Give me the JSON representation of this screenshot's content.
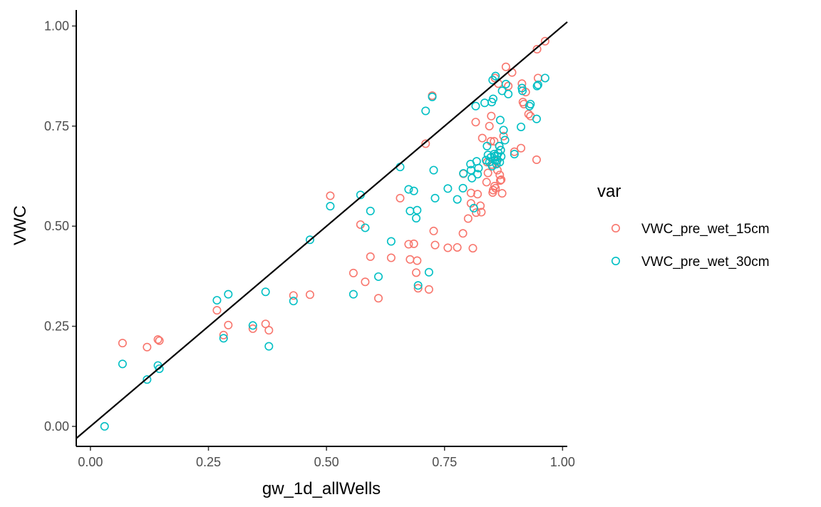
{
  "chart_data": {
    "type": "scatter",
    "xlabel": "gw_1d_allWells",
    "ylabel": "VWC",
    "xlim": [
      -0.03,
      1.01
    ],
    "ylim": [
      -0.05,
      1.04
    ],
    "x_ticks": [
      "0.00",
      "0.25",
      "0.50",
      "0.75",
      "1.00"
    ],
    "y_ticks": [
      "0.00",
      "0.25",
      "0.50",
      "0.75",
      "1.00"
    ],
    "grid": false,
    "legend": {
      "title": "var",
      "position": "right"
    },
    "reference_line": {
      "type": "1:1",
      "color": "#000000"
    },
    "series": [
      {
        "name": "VWC_pre_wet_15cm",
        "color": "#F8766D",
        "points": [
          [
            0.068,
            0.208
          ],
          [
            0.12,
            0.198
          ],
          [
            0.143,
            0.217
          ],
          [
            0.146,
            0.214
          ],
          [
            0.268,
            0.29
          ],
          [
            0.282,
            0.228
          ],
          [
            0.292,
            0.253
          ],
          [
            0.344,
            0.244
          ],
          [
            0.371,
            0.256
          ],
          [
            0.378,
            0.24
          ],
          [
            0.43,
            0.327
          ],
          [
            0.465,
            0.329
          ],
          [
            0.508,
            0.576
          ],
          [
            0.557,
            0.383
          ],
          [
            0.572,
            0.504
          ],
          [
            0.582,
            0.361
          ],
          [
            0.593,
            0.424
          ],
          [
            0.61,
            0.32
          ],
          [
            0.637,
            0.421
          ],
          [
            0.656,
            0.57
          ],
          [
            0.674,
            0.455
          ],
          [
            0.677,
            0.417
          ],
          [
            0.685,
            0.456
          ],
          [
            0.69,
            0.384
          ],
          [
            0.692,
            0.414
          ],
          [
            0.694,
            0.345
          ],
          [
            0.71,
            0.706
          ],
          [
            0.717,
            0.342
          ],
          [
            0.724,
            0.826
          ],
          [
            0.727,
            0.488
          ],
          [
            0.73,
            0.453
          ],
          [
            0.757,
            0.446
          ],
          [
            0.777,
            0.447
          ],
          [
            0.789,
            0.482
          ],
          [
            0.79,
            0.631
          ],
          [
            0.8,
            0.519
          ],
          [
            0.806,
            0.557
          ],
          [
            0.806,
            0.583
          ],
          [
            0.81,
            0.445
          ],
          [
            0.816,
            0.76
          ],
          [
            0.817,
            0.534
          ],
          [
            0.82,
            0.58
          ],
          [
            0.826,
            0.551
          ],
          [
            0.828,
            0.535
          ],
          [
            0.83,
            0.72
          ],
          [
            0.839,
            0.61
          ],
          [
            0.84,
            0.66
          ],
          [
            0.842,
            0.633
          ],
          [
            0.845,
            0.75
          ],
          [
            0.848,
            0.712
          ],
          [
            0.849,
            0.775
          ],
          [
            0.85,
            0.654
          ],
          [
            0.852,
            0.584
          ],
          [
            0.853,
            0.59
          ],
          [
            0.855,
            0.712
          ],
          [
            0.856,
            0.6
          ],
          [
            0.857,
            0.87
          ],
          [
            0.858,
            0.595
          ],
          [
            0.86,
            0.662
          ],
          [
            0.862,
            0.64
          ],
          [
            0.864,
            0.856
          ],
          [
            0.866,
            0.7
          ],
          [
            0.867,
            0.628
          ],
          [
            0.868,
            0.614
          ],
          [
            0.869,
            0.69
          ],
          [
            0.87,
            0.616
          ],
          [
            0.872,
            0.582
          ],
          [
            0.875,
            0.725
          ],
          [
            0.88,
            0.898
          ],
          [
            0.885,
            0.85
          ],
          [
            0.893,
            0.884
          ],
          [
            0.898,
            0.686
          ],
          [
            0.912,
            0.695
          ],
          [
            0.914,
            0.856
          ],
          [
            0.916,
            0.81
          ],
          [
            0.918,
            0.805
          ],
          [
            0.922,
            0.835
          ],
          [
            0.928,
            0.78
          ],
          [
            0.932,
            0.775
          ],
          [
            0.945,
            0.666
          ],
          [
            0.946,
            0.942
          ],
          [
            0.948,
            0.87
          ],
          [
            0.963,
            0.962
          ]
        ]
      },
      {
        "name": "VWC_pre_wet_30cm",
        "color": "#00BFC4",
        "points": [
          [
            0.03,
            0.0
          ],
          [
            0.068,
            0.156
          ],
          [
            0.12,
            0.117
          ],
          [
            0.143,
            0.152
          ],
          [
            0.146,
            0.144
          ],
          [
            0.268,
            0.315
          ],
          [
            0.282,
            0.22
          ],
          [
            0.292,
            0.33
          ],
          [
            0.344,
            0.252
          ],
          [
            0.371,
            0.336
          ],
          [
            0.378,
            0.2
          ],
          [
            0.43,
            0.313
          ],
          [
            0.465,
            0.466
          ],
          [
            0.508,
            0.55
          ],
          [
            0.557,
            0.33
          ],
          [
            0.572,
            0.578
          ],
          [
            0.582,
            0.496
          ],
          [
            0.593,
            0.538
          ],
          [
            0.61,
            0.374
          ],
          [
            0.637,
            0.462
          ],
          [
            0.656,
            0.648
          ],
          [
            0.674,
            0.592
          ],
          [
            0.677,
            0.538
          ],
          [
            0.685,
            0.588
          ],
          [
            0.69,
            0.52
          ],
          [
            0.692,
            0.54
          ],
          [
            0.694,
            0.352
          ],
          [
            0.71,
            0.788
          ],
          [
            0.717,
            0.385
          ],
          [
            0.724,
            0.823
          ],
          [
            0.727,
            0.64
          ],
          [
            0.73,
            0.57
          ],
          [
            0.757,
            0.594
          ],
          [
            0.777,
            0.567
          ],
          [
            0.789,
            0.595
          ],
          [
            0.79,
            0.632
          ],
          [
            0.805,
            0.655
          ],
          [
            0.806,
            0.64
          ],
          [
            0.808,
            0.62
          ],
          [
            0.812,
            0.545
          ],
          [
            0.816,
            0.8
          ],
          [
            0.818,
            0.662
          ],
          [
            0.82,
            0.63
          ],
          [
            0.822,
            0.645
          ],
          [
            0.835,
            0.808
          ],
          [
            0.838,
            0.665
          ],
          [
            0.84,
            0.7
          ],
          [
            0.842,
            0.678
          ],
          [
            0.845,
            0.66
          ],
          [
            0.848,
            0.672
          ],
          [
            0.85,
            0.81
          ],
          [
            0.851,
            0.65
          ],
          [
            0.852,
            0.865
          ],
          [
            0.853,
            0.818
          ],
          [
            0.855,
            0.68
          ],
          [
            0.856,
            0.675
          ],
          [
            0.857,
            0.665
          ],
          [
            0.858,
            0.875
          ],
          [
            0.86,
            0.655
          ],
          [
            0.861,
            0.675
          ],
          [
            0.862,
            0.665
          ],
          [
            0.864,
            0.683
          ],
          [
            0.866,
            0.7
          ],
          [
            0.867,
            0.66
          ],
          [
            0.868,
            0.765
          ],
          [
            0.869,
            0.69
          ],
          [
            0.87,
            0.674
          ],
          [
            0.872,
            0.838
          ],
          [
            0.875,
            0.74
          ],
          [
            0.878,
            0.715
          ],
          [
            0.88,
            0.855
          ],
          [
            0.885,
            0.83
          ],
          [
            0.898,
            0.68
          ],
          [
            0.912,
            0.748
          ],
          [
            0.914,
            0.845
          ],
          [
            0.915,
            0.838
          ],
          [
            0.93,
            0.8
          ],
          [
            0.932,
            0.805
          ],
          [
            0.945,
            0.768
          ],
          [
            0.946,
            0.85
          ],
          [
            0.948,
            0.853
          ],
          [
            0.963,
            0.87
          ]
        ]
      }
    ]
  }
}
